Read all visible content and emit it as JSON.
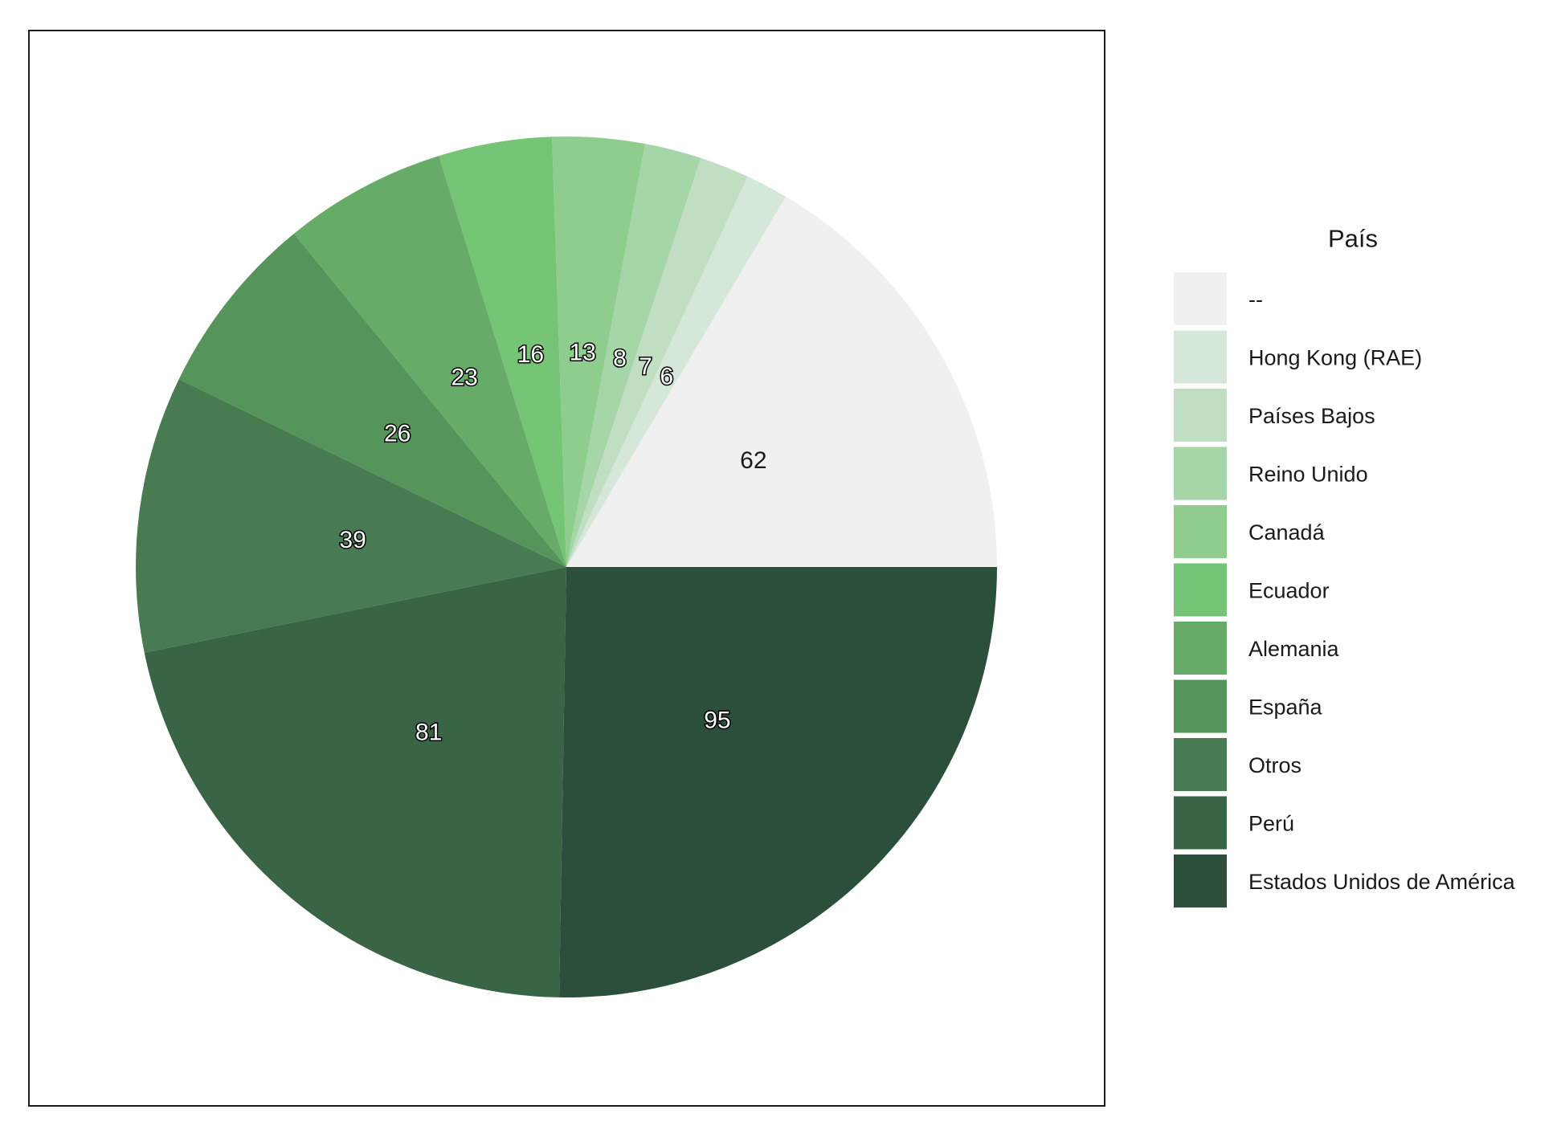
{
  "chart_data": {
    "type": "pie",
    "title": "",
    "legend": {
      "title": "País",
      "position": "right"
    },
    "slices": [
      {
        "label": "--",
        "value": 62,
        "color": "#F0F0F0"
      },
      {
        "label": "Hong Kong (RAE)",
        "value": 6,
        "color": "#D5E7D8"
      },
      {
        "label": "Países Bajos",
        "value": 7,
        "color": "#C0DFC2"
      },
      {
        "label": "Reino Unido",
        "value": 8,
        "color": "#A6D5A7"
      },
      {
        "label": "Canadá",
        "value": 13,
        "color": "#8ECD8E"
      },
      {
        "label": "Ecuador",
        "value": 16,
        "color": "#76C476"
      },
      {
        "label": "Alemania",
        "value": 23,
        "color": "#66AB67"
      },
      {
        "label": "España",
        "value": 26,
        "color": "#55955C"
      },
      {
        "label": "Otros",
        "value": 39,
        "color": "#487B52"
      },
      {
        "label": "Perú",
        "value": 81,
        "color": "#396446"
      },
      {
        "label": "Estados Unidos de América",
        "value": 95,
        "color": "#2B4F3A"
      }
    ]
  }
}
